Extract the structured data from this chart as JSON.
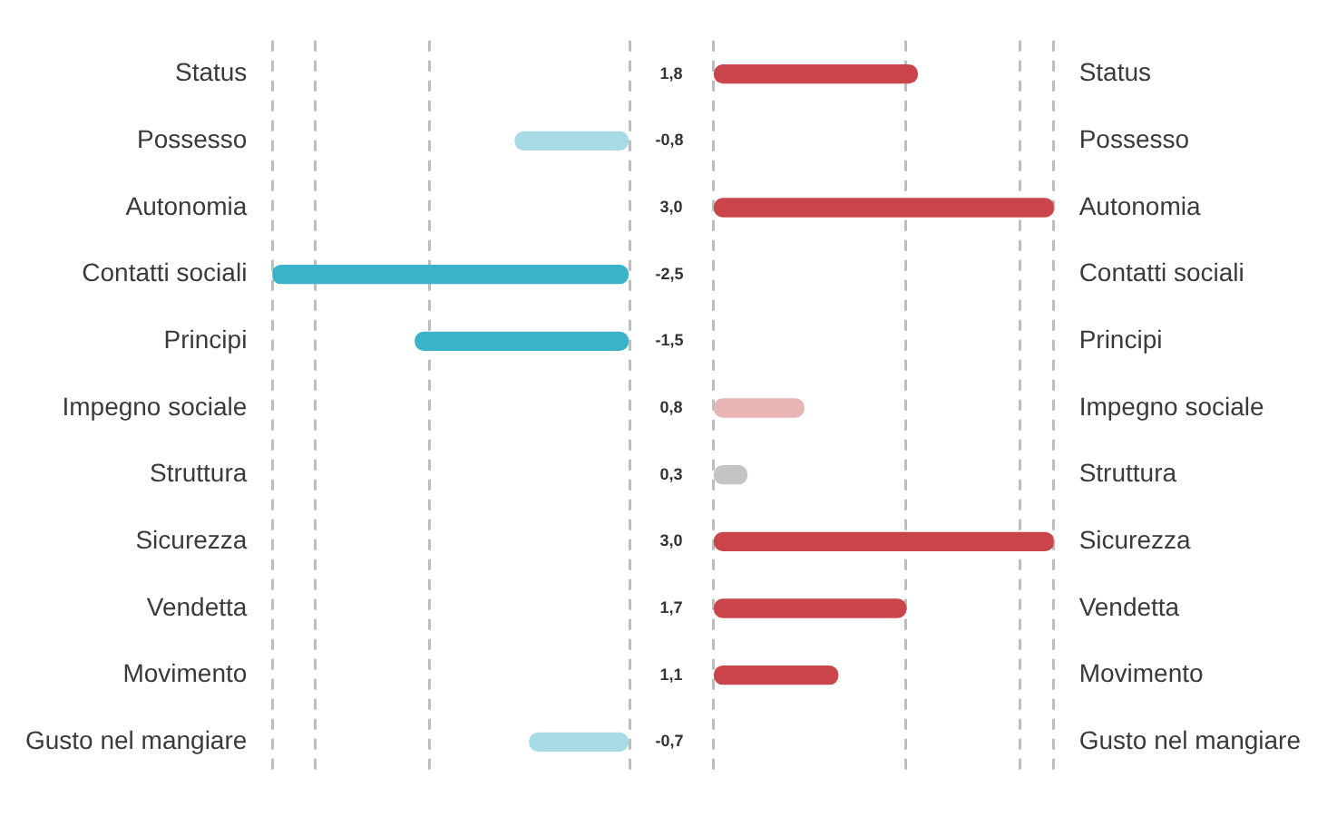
{
  "chart_data": [
    {
      "type": "bar",
      "orientation": "horizontal",
      "categories": [
        "Status",
        "Possesso",
        "Autonomia",
        "Contatti sociali",
        "Principi",
        "Impegno sociale",
        "Struttura",
        "Sicurezza",
        "Vendetta",
        "Movimento",
        "Gusto nel mangiare"
      ],
      "values": [
        null,
        -0.8,
        null,
        -2.5,
        -1.5,
        null,
        null,
        null,
        null,
        null,
        -0.7
      ],
      "colors": [
        "#c9454a",
        "#a8dbe6",
        "#c9454a",
        "#3ab3c9",
        "#3ab3c9",
        "#e8b4b4",
        "#c4c4c4",
        "#c9454a",
        "#c9454a",
        "#c9454a",
        "#a8dbe6"
      ],
      "value_labels": [
        null,
        "-0,8",
        null,
        "-2,5",
        "-1,5",
        null,
        null,
        null,
        null,
        null,
        "-0,7"
      ],
      "xlim": [
        -2.5,
        0
      ],
      "xticks": [
        {
          "value": -2.5,
          "label": null
        },
        {
          "value": -2.2,
          "label": null
        },
        {
          "value": -1.4,
          "label": null
        },
        {
          "value": 0,
          "label": null
        }
      ],
      "grid": "x",
      "tick_labels": "y"
    },
    {
      "type": "bar",
      "orientation": "horizontal",
      "categories": [
        "Status",
        "Possesso",
        "Autonomia",
        "Contatti sociali",
        "Principi",
        "Impegno sociale",
        "Struttura",
        "Sicurezza",
        "Vendetta",
        "Movimento",
        "Gusto nel mangiare"
      ],
      "values": [
        1.8,
        null,
        3.0,
        null,
        null,
        0.8,
        0.3,
        3.0,
        1.7,
        1.1,
        null
      ],
      "colors": [
        "#c9454a",
        "#a8dbe6",
        "#c9454a",
        "#3ab3c9",
        "#3ab3c9",
        "#e8b4b4",
        "#c4c4c4",
        "#c9454a",
        "#c9454a",
        "#c9454a",
        "#a8dbe6"
      ],
      "value_labels": [
        "1,8",
        null,
        "3,0",
        null,
        null,
        "0,8",
        "0,3",
        "3,0",
        "1,7",
        "1,1",
        null
      ],
      "xlim": [
        0,
        3
      ],
      "xticks": [
        {
          "value": 0,
          "label": null
        },
        {
          "value": 1.7,
          "label": null
        },
        {
          "value": 2.7,
          "label": null
        },
        {
          "value": 3,
          "label": null
        }
      ],
      "grid": "x",
      "tick_labels": "y"
    }
  ]
}
